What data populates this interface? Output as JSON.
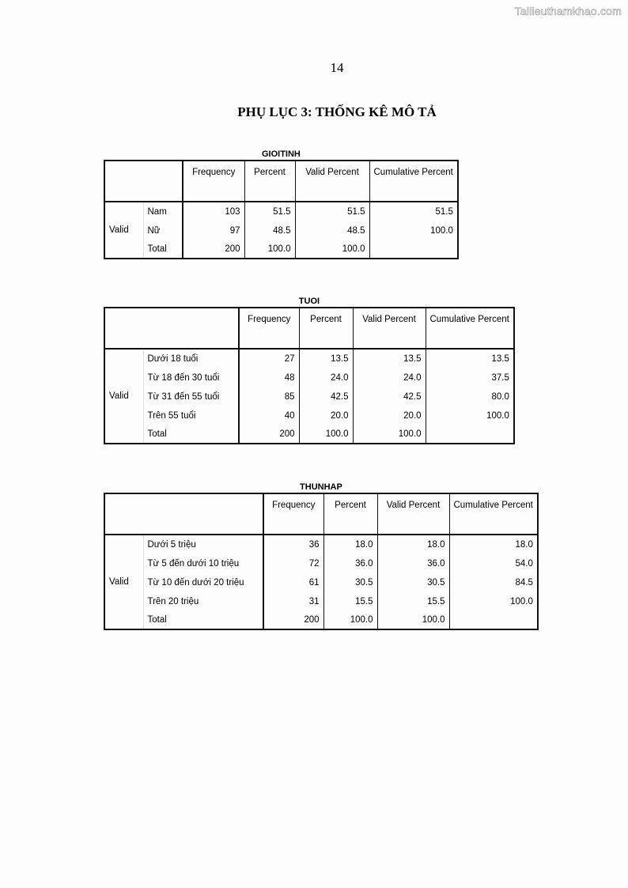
{
  "watermark": "Tailieuthamkhao.com",
  "page_number": "14",
  "title": "PHỤ LỤC 3: THỐNG KÊ MÔ TẢ",
  "tables": [
    {
      "name": "GIOITINH",
      "headers": [
        "Frequency",
        "Percent",
        "Valid Percent",
        "Cumulative Percent"
      ],
      "group": "Valid",
      "rows": [
        [
          "Nam",
          "103",
          "51.5",
          "51.5",
          "51.5"
        ],
        [
          "Nữ",
          "97",
          "48.5",
          "48.5",
          "100.0"
        ],
        [
          "Total",
          "200",
          "100.0",
          "100.0",
          ""
        ]
      ]
    },
    {
      "name": "TUOI",
      "headers": [
        "Frequency",
        "Percent",
        "Valid Percent",
        "Cumulative Percent"
      ],
      "group": "Valid",
      "rows": [
        [
          "Dưới 18 tuổi",
          "27",
          "13.5",
          "13.5",
          "13.5"
        ],
        [
          "Từ 18 đến  30 tuổi",
          "48",
          "24.0",
          "24.0",
          "37.5"
        ],
        [
          "Từ 31 đến 55 tuổi",
          "85",
          "42.5",
          "42.5",
          "80.0"
        ],
        [
          "Trên 55 tuổi",
          "40",
          "20.0",
          "20.0",
          "100.0"
        ],
        [
          "Total",
          "200",
          "100.0",
          "100.0",
          ""
        ]
      ]
    },
    {
      "name": "THUNHAP",
      "headers": [
        "Frequency",
        "Percent",
        "Valid Percent",
        "Cumulative Percent"
      ],
      "group": "Valid",
      "rows": [
        [
          "Dưới 5 triệu",
          "36",
          "18.0",
          "18.0",
          "18.0"
        ],
        [
          "Từ 5 đến dưới 10 triệu",
          "72",
          "36.0",
          "36.0",
          "54.0"
        ],
        [
          "Từ 10 đến dưới 20 triệu",
          "61",
          "30.5",
          "30.5",
          "84.5"
        ],
        [
          "Trên 20 triệu",
          "31",
          "15.5",
          "15.5",
          "100.0"
        ],
        [
          "Total",
          "200",
          "100.0",
          "100.0",
          ""
        ]
      ]
    }
  ]
}
